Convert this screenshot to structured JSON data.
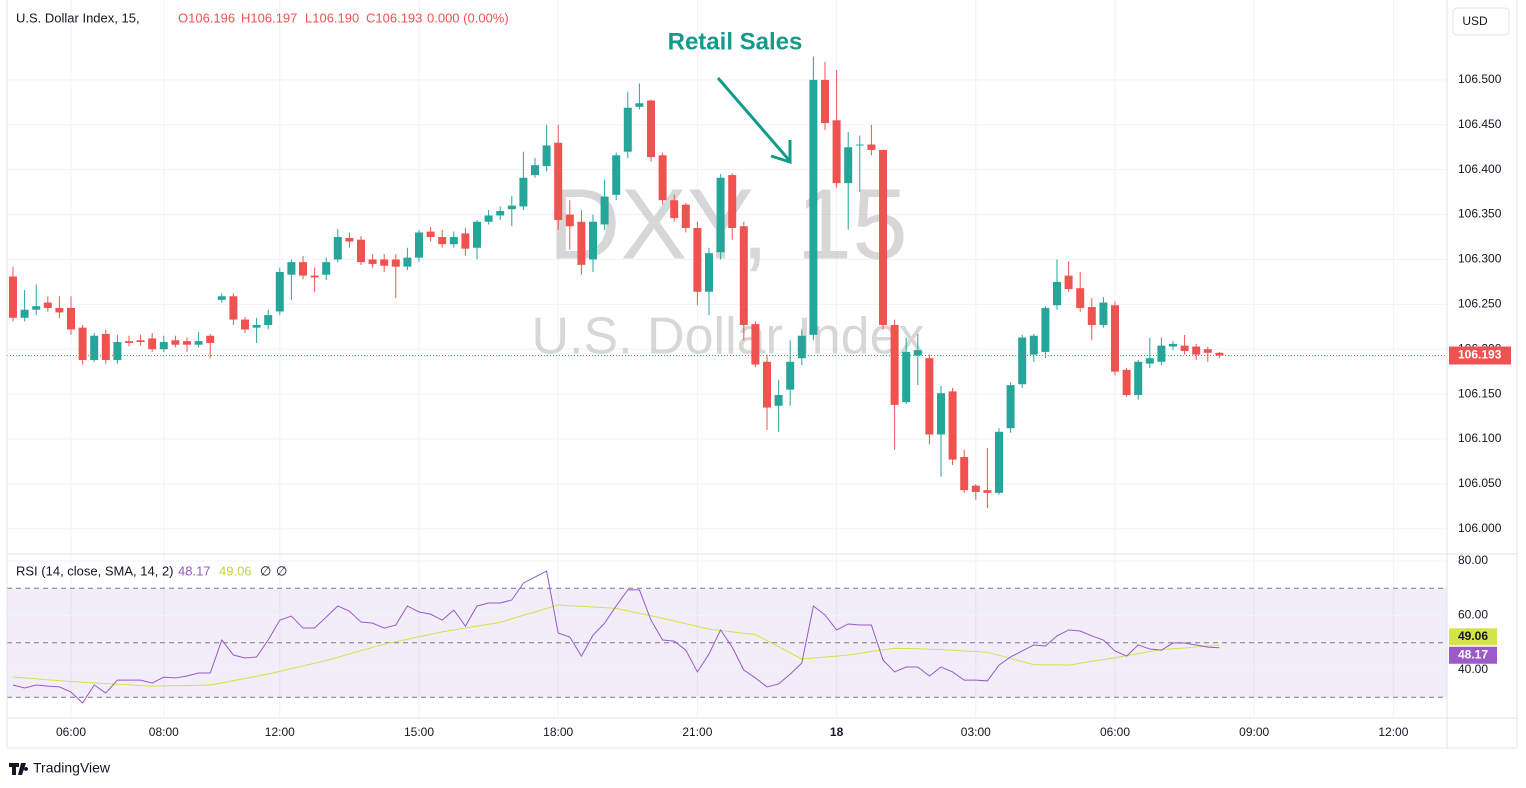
{
  "header": {
    "symbol": "U.S. Dollar Index, 15,",
    "ohlc": [
      "O106.196",
      "H106.197",
      "L106.190",
      "C106.193",
      "0.000 (0.00%)"
    ],
    "currency": "USD"
  },
  "footer": {
    "brand": "TradingView"
  },
  "chart_data": [
    {
      "type": "candlestick",
      "watermark": "DXY, 15",
      "watermark_sub": "U.S. Dollar Index",
      "annotation": "Retail Sales",
      "categories": [
        null,
        null,
        null,
        null,
        null,
        "06:00",
        null,
        null,
        null,
        null,
        null,
        null,
        null,
        "08:00",
        null,
        null,
        null,
        null,
        null,
        null,
        null,
        null,
        null,
        "12:00",
        null,
        null,
        null,
        null,
        null,
        null,
        null,
        null,
        null,
        null,
        null,
        "15:00",
        null,
        null,
        null,
        null,
        null,
        null,
        null,
        null,
        null,
        null,
        null,
        "18:00",
        null,
        null,
        null,
        null,
        null,
        null,
        null,
        null,
        null,
        null,
        null,
        "21:00",
        null,
        null,
        null,
        null,
        null,
        null,
        null,
        null,
        null,
        null,
        null,
        "18",
        null,
        null,
        null,
        null,
        null,
        null,
        null,
        null,
        null,
        null,
        null,
        "03:00",
        null,
        null,
        null,
        null,
        null,
        null,
        null,
        null,
        null,
        null,
        null,
        "06:00",
        null,
        null,
        null,
        null,
        null,
        null,
        null,
        null,
        null,
        null,
        null,
        "09:00",
        null,
        null,
        null,
        null,
        null,
        null,
        null,
        null,
        null,
        null,
        null,
        "12:00",
        null,
        null,
        null,
        null
      ],
      "open": [
        106.281,
        106.235,
        106.244,
        106.252,
        106.246,
        106.246,
        106.224,
        106.188,
        106.217,
        106.188,
        106.209,
        106.21,
        106.212,
        106.2,
        106.21,
        106.209,
        106.205,
        106.215,
        106.255,
        106.259,
        106.233,
        106.224,
        106.227,
        106.242,
        106.283,
        106.297,
        106.282,
        106.283,
        106.3,
        106.324,
        106.322,
        106.3,
        106.3,
        106.3,
        106.292,
        106.302,
        106.331,
        106.325,
        106.317,
        106.329,
        106.313,
        106.342,
        106.349,
        106.356,
        106.359,
        106.394,
        106.404,
        106.43,
        106.35,
        106.342,
        106.3,
        106.339,
        106.372,
        106.42,
        106.47,
        106.477,
        106.416,
        106.366,
        106.361,
        106.335,
        106.264,
        106.308,
        106.394,
        106.337,
        106.228,
        106.186,
        106.137,
        106.155,
        106.19,
        106.216,
        106.5,
        106.455,
        106.385,
        106.427,
        106.428,
        106.422,
        106.227,
        106.141,
        106.193,
        106.19,
        106.105,
        106.153,
        106.08,
        106.048,
        106.043,
        106.04,
        106.112,
        106.161,
        106.194,
        106.197,
        106.249,
        106.282,
        106.268,
        106.247,
        106.227,
        106.249,
        106.177,
        106.149,
        106.184,
        106.186,
        106.203,
        106.204,
        106.203,
        106.2,
        106.196,
        null,
        null,
        null,
        null,
        null,
        null,
        null,
        null,
        null,
        null,
        null,
        null,
        null,
        null,
        null,
        null,
        null,
        null,
        null
      ],
      "high": [
        106.292,
        106.266,
        106.272,
        106.259,
        106.259,
        106.259,
        106.227,
        106.218,
        106.222,
        106.216,
        106.215,
        106.216,
        106.218,
        106.215,
        106.215,
        106.213,
        106.219,
        106.217,
        106.262,
        106.262,
        106.236,
        106.235,
        106.244,
        106.291,
        106.3,
        106.304,
        106.291,
        106.302,
        106.334,
        106.33,
        106.326,
        106.306,
        106.306,
        106.306,
        106.313,
        106.333,
        106.336,
        106.333,
        106.331,
        106.335,
        106.344,
        106.355,
        106.359,
        106.371,
        106.42,
        106.413,
        106.45,
        106.45,
        106.366,
        106.355,
        106.35,
        106.389,
        106.419,
        106.487,
        106.496,
        106.478,
        106.419,
        106.372,
        106.363,
        106.342,
        106.313,
        106.395,
        106.396,
        106.342,
        106.231,
        106.194,
        106.166,
        106.21,
        106.222,
        106.526,
        106.52,
        106.511,
        106.442,
        106.438,
        106.45,
        106.422,
        106.233,
        106.213,
        106.217,
        106.194,
        106.159,
        106.157,
        106.088,
        106.05,
        106.09,
        106.112,
        106.163,
        106.216,
        106.217,
        106.248,
        106.3,
        106.298,
        106.286,
        106.257,
        106.258,
        106.253,
        106.179,
        106.188,
        106.213,
        106.213,
        106.209,
        106.216,
        106.206,
        106.203,
        106.197,
        null,
        null,
        null,
        null,
        null,
        null,
        null,
        null,
        null,
        null,
        null,
        null,
        null,
        null,
        null,
        null,
        null,
        null,
        null
      ],
      "low": [
        106.231,
        106.231,
        106.238,
        106.242,
        106.235,
        106.216,
        106.183,
        106.186,
        106.184,
        106.184,
        106.203,
        106.204,
        106.197,
        106.197,
        106.202,
        106.197,
        106.202,
        106.19,
        106.252,
        106.227,
        106.218,
        106.207,
        106.222,
        106.238,
        106.255,
        106.278,
        106.264,
        106.277,
        106.297,
        106.313,
        106.294,
        106.291,
        106.286,
        106.257,
        106.288,
        106.297,
        106.32,
        106.313,
        106.313,
        106.304,
        106.3,
        106.339,
        106.344,
        106.337,
        106.355,
        106.391,
        106.398,
        106.333,
        106.311,
        106.283,
        106.286,
        106.333,
        106.366,
        106.413,
        106.467,
        106.409,
        106.361,
        106.342,
        106.33,
        106.249,
        106.238,
        106.3,
        106.322,
        106.21,
        106.18,
        106.11,
        106.108,
        106.137,
        106.182,
        106.21,
        106.444,
        106.38,
        106.333,
        106.375,
        106.416,
        106.222,
        106.088,
        106.139,
        106.16,
        106.094,
        106.058,
        106.071,
        106.04,
        106.032,
        106.023,
        106.038,
        106.107,
        106.157,
        106.186,
        106.19,
        106.244,
        106.264,
        106.242,
        106.21,
        106.224,
        106.171,
        106.147,
        106.144,
        106.179,
        106.182,
        106.199,
        106.194,
        106.188,
        106.186,
        106.19,
        null,
        null,
        null,
        null,
        null,
        null,
        null,
        null,
        null,
        null,
        null,
        null,
        null,
        null,
        null,
        null,
        null,
        null,
        null
      ],
      "close": [
        106.235,
        106.244,
        106.248,
        106.246,
        106.241,
        106.222,
        106.188,
        106.215,
        106.188,
        106.208,
        106.207,
        106.208,
        106.2,
        106.208,
        106.205,
        106.205,
        106.209,
        106.207,
        106.259,
        106.233,
        106.222,
        106.227,
        106.238,
        106.286,
        106.297,
        106.282,
        106.28,
        106.297,
        106.325,
        106.32,
        106.297,
        106.295,
        106.293,
        106.292,
        106.302,
        106.33,
        106.325,
        106.317,
        106.325,
        106.312,
        106.342,
        106.349,
        106.354,
        106.36,
        106.391,
        106.405,
        106.427,
        106.344,
        106.337,
        106.294,
        106.342,
        106.37,
        106.416,
        106.469,
        106.474,
        106.414,
        106.366,
        106.346,
        106.335,
        106.264,
        106.307,
        106.391,
        106.335,
        106.227,
        106.183,
        106.135,
        106.149,
        106.186,
        106.215,
        106.5,
        106.452,
        106.385,
        106.425,
        106.428,
        106.422,
        106.227,
        106.138,
        106.197,
        106.199,
        106.105,
        106.151,
        106.077,
        106.043,
        106.041,
        106.04,
        106.108,
        106.16,
        106.213,
        106.215,
        106.246,
        106.275,
        106.267,
        106.246,
        106.227,
        106.252,
        106.175,
        106.149,
        106.186,
        106.19,
        106.204,
        106.206,
        106.198,
        106.194,
        106.196,
        106.193,
        null,
        null,
        null,
        null,
        null,
        null,
        null,
        null,
        null,
        null,
        null,
        null,
        null,
        null,
        null,
        null,
        null,
        null,
        null
      ],
      "up_color": "#26a69a",
      "down_color": "#ef5350",
      "ylim": [
        105.973,
        106.589
      ],
      "yticks": [
        {
          "value": 106.0,
          "label": "106.000"
        },
        {
          "value": 106.05,
          "label": "106.050"
        },
        {
          "value": 106.1,
          "label": "106.100"
        },
        {
          "value": 106.15,
          "label": "106.150"
        },
        {
          "value": 106.2,
          "label": "106.200"
        },
        {
          "value": 106.25,
          "label": "106.250"
        },
        {
          "value": 106.3,
          "label": "106.300"
        },
        {
          "value": 106.35,
          "label": "106.350"
        },
        {
          "value": 106.4,
          "label": "106.400"
        },
        {
          "value": 106.45,
          "label": "106.450"
        },
        {
          "value": 106.5,
          "label": "106.500"
        }
      ],
      "grid": true,
      "last_price": 106.193,
      "last_price_color": "#ef5350"
    },
    {
      "type": "line",
      "title": "RSI (14, close, SMA, 14, 2)",
      "legend_extras": [
        "∅",
        "∅"
      ],
      "series": [
        {
          "color": "#9b59c9",
          "values": [
            34.5,
            33.4,
            34.5,
            34.1,
            33.8,
            31.9,
            27.9,
            34.5,
            31.6,
            36.3,
            36.3,
            36.3,
            35.2,
            37.4,
            37.1,
            37.8,
            38.9,
            38.9,
            51.0,
            45.5,
            44.4,
            44.8,
            51.0,
            58.3,
            59.8,
            55.4,
            55.4,
            59.4,
            63.5,
            61.6,
            57.6,
            57.2,
            55.4,
            56.5,
            63.5,
            61.3,
            60.5,
            58.3,
            62.0,
            56.1,
            63.5,
            64.6,
            64.6,
            65.7,
            71.9,
            74.1,
            76.3,
            53.6,
            52.1,
            45.1,
            52.8,
            57.2,
            63.5,
            69.4,
            69.4,
            58.3,
            51.0,
            50.6,
            47.3,
            39.3,
            45.9,
            54.7,
            48.4,
            40.0,
            37.1,
            33.8,
            34.9,
            38.5,
            42.6,
            63.5,
            60.2,
            54.7,
            56.9,
            56.5,
            56.5,
            43.7,
            39.3,
            41.1,
            41.1,
            37.8,
            41.1,
            39.3,
            36.3,
            36.3,
            36.0,
            41.8,
            44.8,
            47.0,
            49.2,
            48.8,
            52.5,
            54.7,
            54.3,
            52.5,
            51.0,
            47.0,
            45.1,
            49.2,
            47.7,
            47.3,
            49.9,
            49.9,
            49.2,
            48.4,
            48.17
          ]
        },
        {
          "color": "#d4e34a",
          "values": [
            37.4,
            37.1,
            36.8,
            36.4,
            36.1,
            35.8,
            35.5,
            35.3,
            35.0,
            34.8,
            34.6,
            34.3,
            34.1,
            34.2,
            34.3,
            34.3,
            34.4,
            34.5,
            35.3,
            36.1,
            36.9,
            37.7,
            38.5,
            39.5,
            40.5,
            41.5,
            42.5,
            43.5,
            44.7,
            45.9,
            47.1,
            48.3,
            49.5,
            50.4,
            51.3,
            52.2,
            53.1,
            54.0,
            54.7,
            55.4,
            56.1,
            56.8,
            57.5,
            58.8,
            60.1,
            61.3,
            62.6,
            63.9,
            63.6,
            63.4,
            63.1,
            62.9,
            62.6,
            61.7,
            60.8,
            59.9,
            59.0,
            58.0,
            57.0,
            56.0,
            55.0,
            54.5,
            54.0,
            53.5,
            53.0,
            50.8,
            48.5,
            46.3,
            44.0,
            44.4,
            44.8,
            45.1,
            45.5,
            46.1,
            46.8,
            47.4,
            48.0,
            47.9,
            47.8,
            47.6,
            47.5,
            47.3,
            47.0,
            46.8,
            46.5,
            45.4,
            44.3,
            43.1,
            42.0,
            41.9,
            41.9,
            41.8,
            42.5,
            43.2,
            43.8,
            44.5,
            45.3,
            46.0,
            46.8,
            47.5,
            47.8,
            48.1,
            48.5,
            48.8,
            49.06
          ]
        }
      ],
      "ylim": [
        22.4,
        82.2
      ],
      "yticks": [
        {
          "value": 80,
          "label": "80.00"
        },
        {
          "value": 60,
          "label": "60.00"
        },
        {
          "value": 40,
          "label": "40.00"
        }
      ],
      "levels": [
        70,
        50,
        30
      ],
      "band_color": "#7e57c2"
    }
  ]
}
